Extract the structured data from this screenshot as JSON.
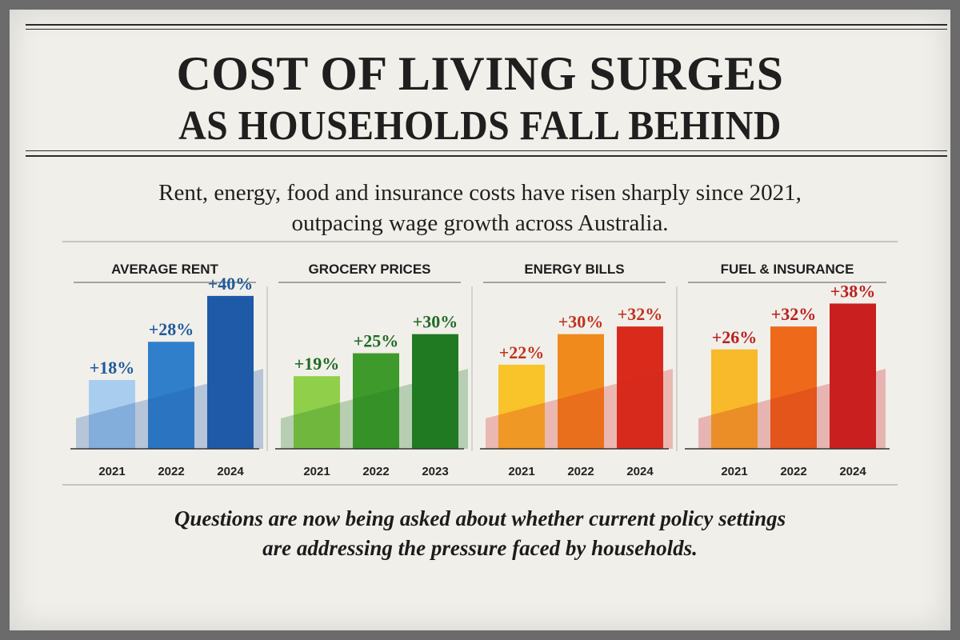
{
  "headline": {
    "line1": "COST OF LIVING SURGES",
    "line2": "AS HOUSEHOLDS FALL BEHIND"
  },
  "subtitle": {
    "line1": "Rent, energy, food and insurance costs have risen sharply since 2021,",
    "line2": "outpacing wage growth across Australia."
  },
  "footnote": {
    "line1": "Questions are now being asked about whether current policy settings",
    "line2": "are addressing the pressure faced by households."
  },
  "chart_data": [
    {
      "type": "bar",
      "title": "AVERAGE RENT",
      "categories": [
        "2021",
        "2022",
        "2024"
      ],
      "values": [
        18,
        28,
        40
      ],
      "labels": [
        "+18%",
        "+28%",
        "+40%"
      ],
      "colors": [
        "#a9cdee",
        "#2f7fcb",
        "#1f5aa8"
      ],
      "label_color": "#1f5a9a",
      "ylim": [
        0,
        45
      ]
    },
    {
      "type": "bar",
      "title": "GROCERY PRICES",
      "categories": [
        "2021",
        "2022",
        "2023"
      ],
      "values": [
        19,
        25,
        30
      ],
      "labels": [
        "+19%",
        "+25%",
        "+30%"
      ],
      "colors": [
        "#8fcf4a",
        "#3f9a2c",
        "#1f7a22"
      ],
      "label_color": "#1f6a24",
      "ylim": [
        0,
        45
      ]
    },
    {
      "type": "bar",
      "title": "ENERGY BILLS",
      "categories": [
        "2021",
        "2022",
        "2024"
      ],
      "values": [
        22,
        30,
        32
      ],
      "labels": [
        "+22%",
        "+30%",
        "+32%"
      ],
      "colors": [
        "#f9c32a",
        "#f08a1c",
        "#d92a1c"
      ],
      "label_color": "#c0321f",
      "ylim": [
        0,
        45
      ]
    },
    {
      "type": "bar",
      "title": "FUEL & INSURANCE",
      "categories": [
        "2021",
        "2022",
        "2024"
      ],
      "values": [
        26,
        32,
        38
      ],
      "labels": [
        "+26%",
        "+32%",
        "+38%"
      ],
      "colors": [
        "#f8b92a",
        "#ee6a1a",
        "#c91f1f"
      ],
      "label_color": "#b8211d",
      "ylim": [
        0,
        45
      ]
    }
  ]
}
